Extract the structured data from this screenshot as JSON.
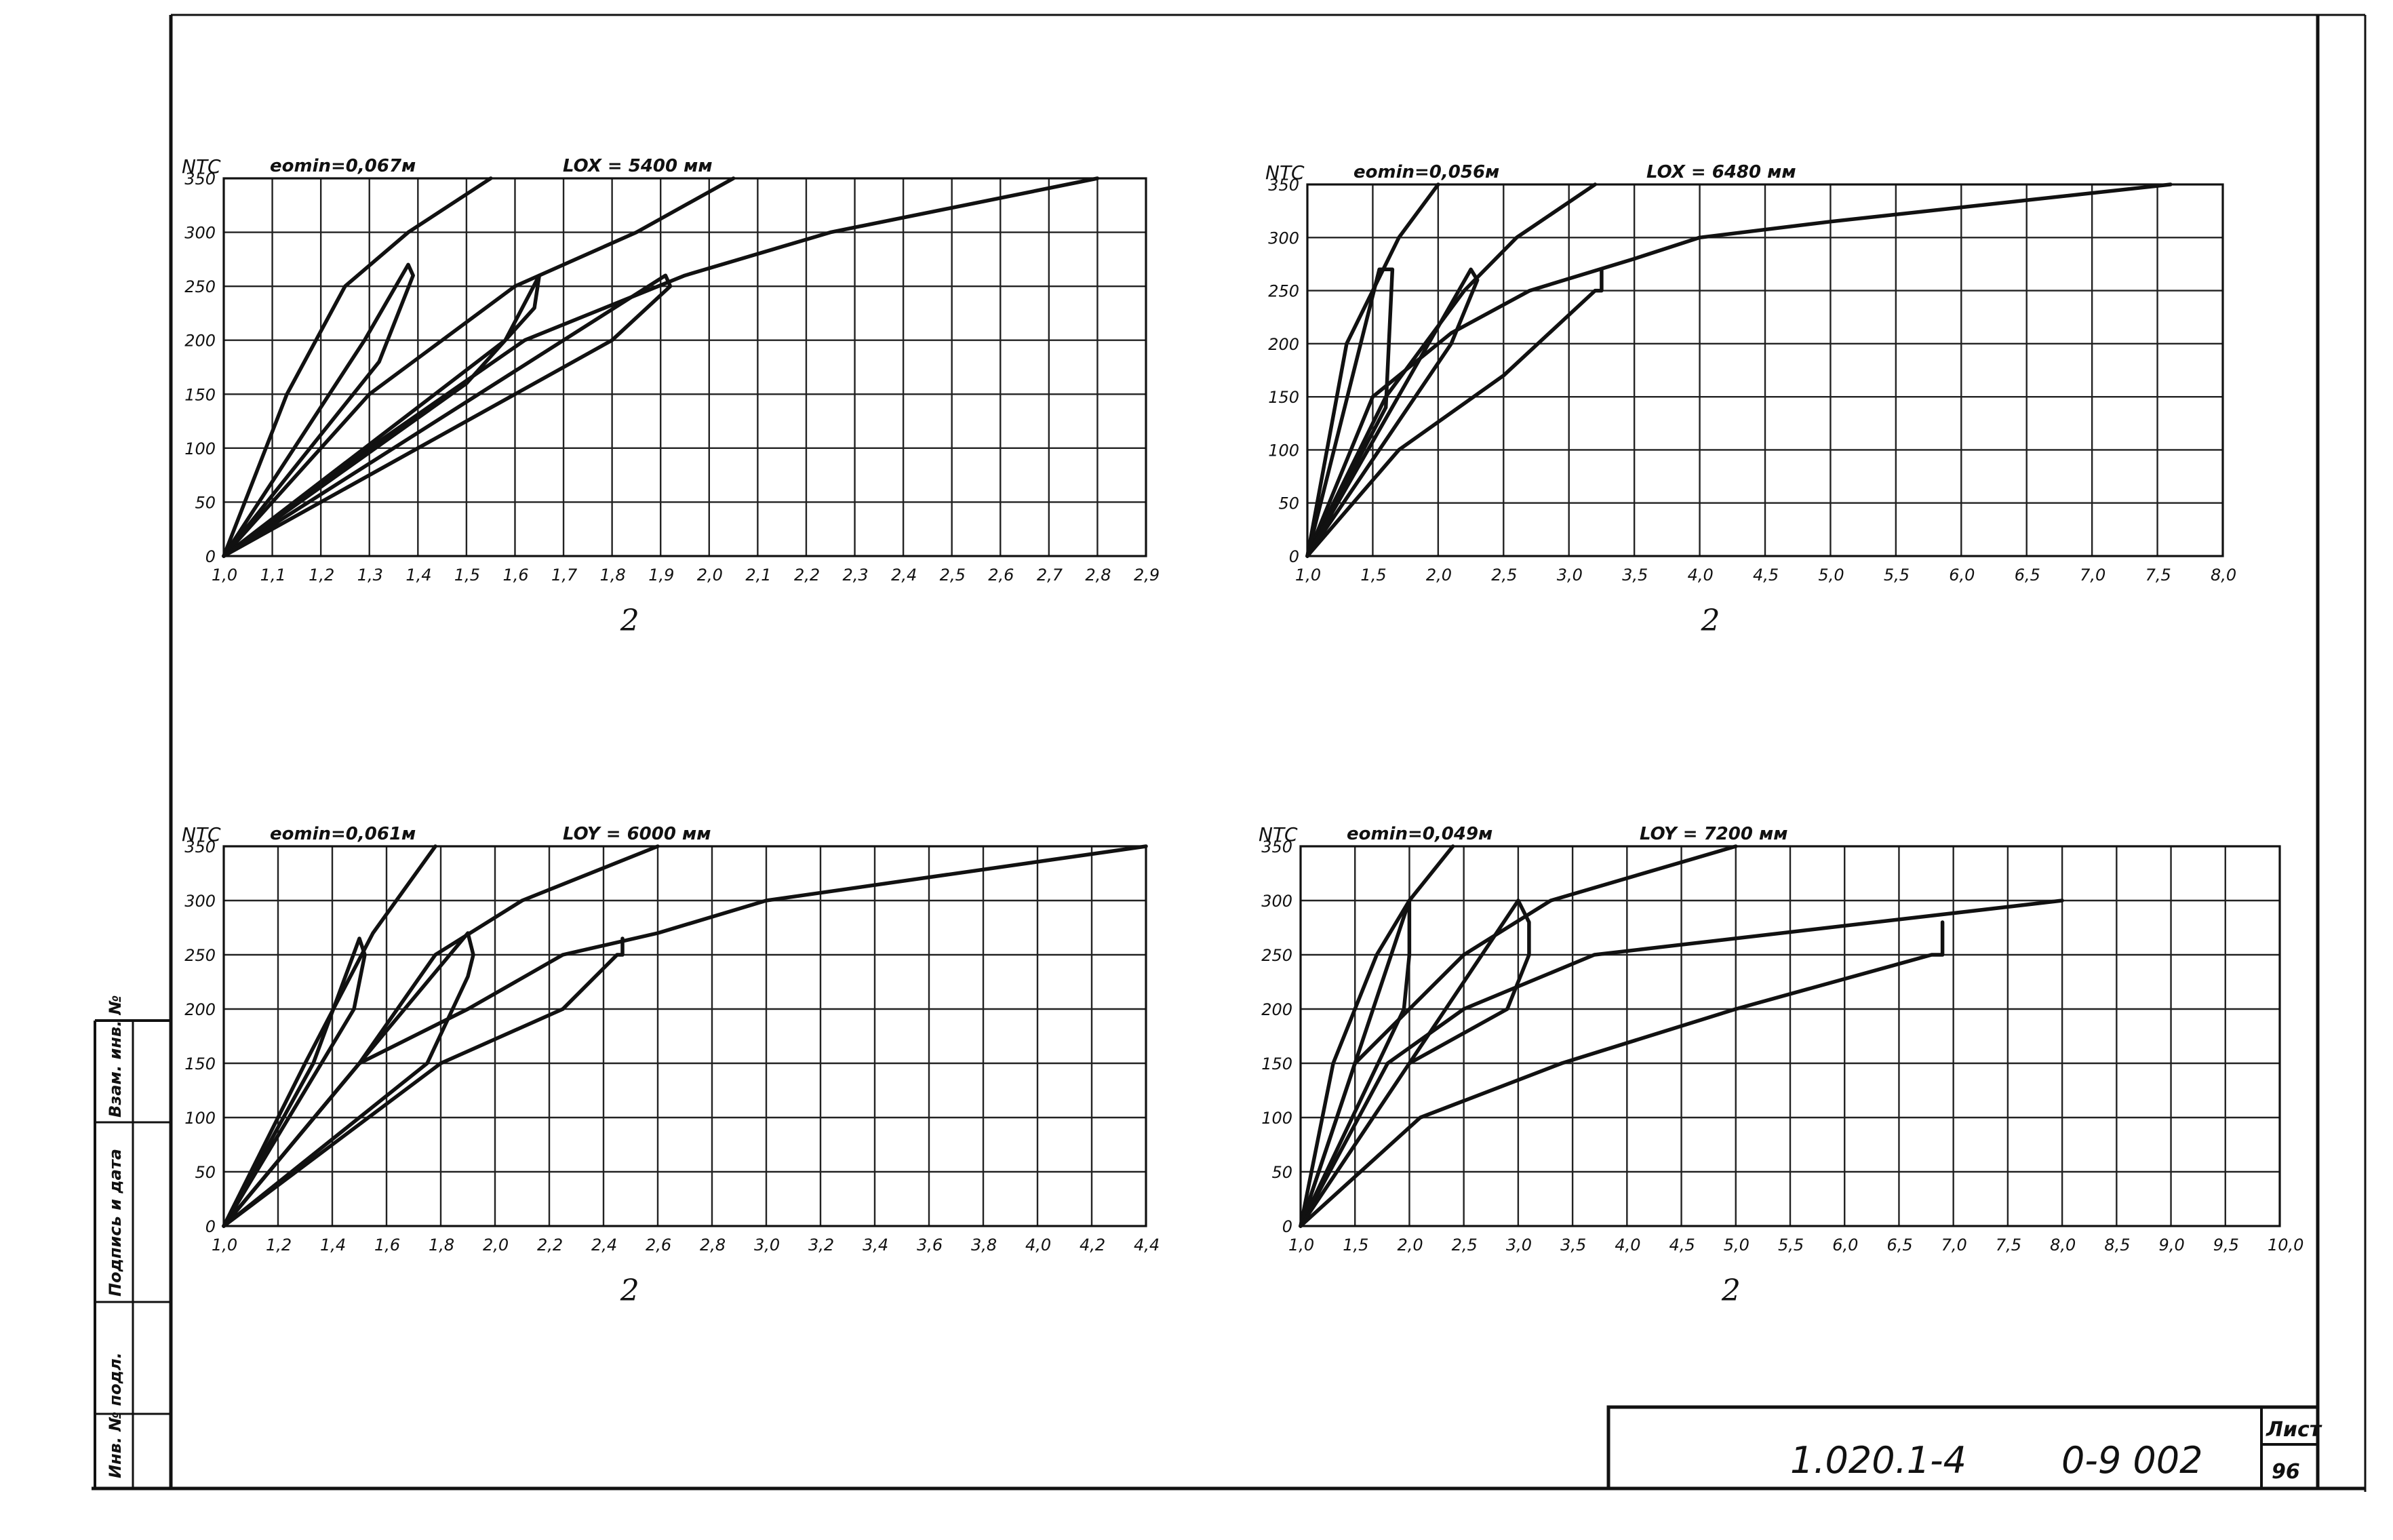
{
  "stamp": {
    "doc_code": "1.020.1-4",
    "series": "0-9 002",
    "sheet_label": "Лист",
    "sheet_number": "96"
  },
  "side_strip": {
    "labels": [
      "Инв. № подл.",
      "Подпись и дата",
      "Взам. инв. №"
    ]
  },
  "chart_data": [
    {
      "type": "line",
      "ylabel": "NTC",
      "xlabel": "2",
      "emin_label": "eomin=0,067м",
      "l_label": "LOX = 5400 мм",
      "xlim": [
        1.0,
        2.9
      ],
      "ylim": [
        0,
        350
      ],
      "grid": true,
      "xticks": [
        1.0,
        1.1,
        1.2,
        1.3,
        1.4,
        1.5,
        1.6,
        1.7,
        1.8,
        1.9,
        2.0,
        2.1,
        2.2,
        2.3,
        2.4,
        2.5,
        2.6,
        2.7,
        2.8,
        2.9
      ],
      "xtick_labels": [
        "1,0",
        "1,1",
        "1,2",
        "1,3",
        "1,4",
        "1,5",
        "1,6",
        "1,7",
        "1,8",
        "1,9",
        "2,0",
        "2,1",
        "2,2",
        "2,3",
        "2,4",
        "2,5",
        "2,6",
        "2,7",
        "2,8",
        "2,9"
      ],
      "yticks": [
        0,
        50,
        100,
        150,
        200,
        250,
        300,
        350
      ],
      "series": [
        {
          "x": [
            1.0,
            1.13,
            1.25,
            1.38,
            1.55
          ],
          "y": [
            0,
            150,
            250,
            300,
            350
          ]
        },
        {
          "x": [
            1.0,
            1.3,
            1.6,
            1.85,
            2.05
          ],
          "y": [
            0,
            150,
            250,
            300,
            350
          ]
        },
        {
          "x": [
            1.0,
            1.3,
            1.62,
            1.95,
            2.25,
            2.8
          ],
          "y": [
            0,
            100,
            200,
            260,
            300,
            350
          ]
        },
        {
          "x": [
            1.0,
            1.32,
            1.39,
            1.38,
            1.29,
            1.0
          ],
          "y": [
            0,
            180,
            260,
            270,
            200,
            0
          ]
        },
        {
          "x": [
            1.0,
            1.5,
            1.64,
            1.65,
            1.58,
            1.0
          ],
          "y": [
            0,
            160,
            230,
            260,
            200,
            0
          ]
        },
        {
          "x": [
            1.0,
            1.6,
            1.8,
            1.92,
            1.91,
            1.0
          ],
          "y": [
            0,
            150,
            200,
            250,
            260,
            0
          ]
        }
      ]
    },
    {
      "type": "line",
      "ylabel": "NTC",
      "xlabel": "2",
      "emin_label": "eomin=0,056м",
      "l_label": "LOX = 6480 мм",
      "xlim": [
        1.0,
        8.0
      ],
      "ylim": [
        0,
        350
      ],
      "grid": true,
      "xticks": [
        1.0,
        1.5,
        2.0,
        2.5,
        3.0,
        3.5,
        4.0,
        4.5,
        5.0,
        5.5,
        6.0,
        6.5,
        7.0,
        7.5,
        8.0
      ],
      "xtick_labels": [
        "1,0",
        "1,5",
        "2,0",
        "2,5",
        "3,0",
        "3,5",
        "4,0",
        "4,5",
        "5,0",
        "5,5",
        "6,0",
        "6,5",
        "7,0",
        "7,5",
        "8,0"
      ],
      "yticks": [
        0,
        50,
        100,
        150,
        200,
        250,
        300,
        350
      ],
      "series": [
        {
          "x": [
            1.0,
            1.3,
            1.7,
            2.0
          ],
          "y": [
            0,
            200,
            300,
            350
          ]
        },
        {
          "x": [
            1.0,
            1.6,
            2.2,
            2.6,
            3.2
          ],
          "y": [
            0,
            150,
            250,
            300,
            350
          ]
        },
        {
          "x": [
            1.0,
            1.5,
            2.1,
            2.7,
            3.5,
            4.0,
            5.0,
            7.6
          ],
          "y": [
            0,
            150,
            210,
            250,
            280,
            300,
            315,
            350
          ]
        },
        {
          "x": [
            1.0,
            1.6,
            1.65,
            1.55,
            1.0
          ],
          "y": [
            0,
            140,
            270,
            270,
            0
          ]
        },
        {
          "x": [
            1.0,
            2.1,
            2.3,
            2.25,
            1.0
          ],
          "y": [
            0,
            200,
            260,
            270,
            0
          ]
        },
        {
          "x": [
            1.0,
            1.7,
            2.5,
            3.2,
            3.25,
            3.25
          ],
          "y": [
            0,
            100,
            170,
            250,
            250,
            270
          ]
        }
      ]
    },
    {
      "type": "line",
      "ylabel": "NTC",
      "xlabel": "2",
      "emin_label": "eomin=0,061м",
      "l_label": "LOY = 6000 мм",
      "xlim": [
        1.0,
        4.4
      ],
      "ylim": [
        0,
        350
      ],
      "grid": true,
      "xticks": [
        1.0,
        1.2,
        1.4,
        1.6,
        1.8,
        2.0,
        2.2,
        2.4,
        2.6,
        2.8,
        3.0,
        3.2,
        3.4,
        3.6,
        3.8,
        4.0,
        4.2,
        4.4
      ],
      "xtick_labels": [
        "1,0",
        "1,2",
        "1,4",
        "1,6",
        "1,8",
        "2,0",
        "2,2",
        "2,4",
        "2,6",
        "2,8",
        "3,0",
        "3,2",
        "3,4",
        "3,6",
        "3,8",
        "4,0",
        "4,2",
        "4,4"
      ],
      "yticks": [
        0,
        50,
        100,
        150,
        200,
        250,
        300,
        350
      ],
      "series": [
        {
          "x": [
            1.0,
            1.3,
            1.55,
            1.78
          ],
          "y": [
            0,
            150,
            270,
            350
          ]
        },
        {
          "x": [
            1.0,
            1.5,
            1.78,
            2.1,
            2.6
          ],
          "y": [
            0,
            150,
            250,
            300,
            350
          ]
        },
        {
          "x": [
            1.0,
            1.5,
            1.9,
            2.25,
            2.6,
            3.0,
            4.4
          ],
          "y": [
            0,
            150,
            200,
            250,
            270,
            300,
            350
          ]
        },
        {
          "x": [
            1.0,
            1.48,
            1.52,
            1.5,
            1.33,
            1.0
          ],
          "y": [
            0,
            200,
            250,
            265,
            150,
            0
          ]
        },
        {
          "x": [
            1.0,
            1.75,
            1.9,
            1.92,
            1.9,
            1.0
          ],
          "y": [
            0,
            150,
            230,
            250,
            270,
            0
          ]
        },
        {
          "x": [
            1.0,
            1.8,
            2.25,
            2.45,
            2.47,
            2.47
          ],
          "y": [
            0,
            150,
            200,
            250,
            250,
            265
          ]
        }
      ]
    },
    {
      "type": "line",
      "ylabel": "NTC",
      "xlabel": "2",
      "emin_label": "eomin=0,049м",
      "l_label": "LOY = 7200 мм",
      "xlim": [
        1.0,
        10.0
      ],
      "ylim": [
        0,
        350
      ],
      "grid": true,
      "xticks": [
        1.0,
        1.5,
        2.0,
        2.5,
        3.0,
        3.5,
        4.0,
        4.5,
        5.0,
        5.5,
        6.0,
        6.5,
        7.0,
        7.5,
        8.0,
        8.5,
        9.0,
        9.5,
        10.0
      ],
      "xtick_labels": [
        "1,0",
        "1,5",
        "2,0",
        "2,5",
        "3,0",
        "3,5",
        "4,0",
        "4,5",
        "5,0",
        "5,5",
        "6,0",
        "6,5",
        "7,0",
        "7,5",
        "8,0",
        "8,5",
        "9,0",
        "9,5",
        "10,0"
      ],
      "yticks": [
        0,
        50,
        100,
        150,
        200,
        250,
        300,
        350
      ],
      "series": [
        {
          "x": [
            1.0,
            1.3,
            1.7,
            2.0,
            2.4
          ],
          "y": [
            0,
            150,
            250,
            300,
            350
          ]
        },
        {
          "x": [
            1.0,
            1.5,
            2.5,
            3.3,
            5.0
          ],
          "y": [
            0,
            150,
            250,
            300,
            350
          ]
        },
        {
          "x": [
            1.0,
            1.8,
            2.5,
            3.7,
            8.0
          ],
          "y": [
            0,
            150,
            200,
            250,
            300
          ]
        },
        {
          "x": [
            1.0,
            1.95,
            2.0,
            2.0,
            1.0
          ],
          "y": [
            0,
            200,
            250,
            300,
            0
          ]
        },
        {
          "x": [
            1.0,
            2.0,
            2.9,
            3.1,
            3.1,
            3.0,
            1.0
          ],
          "y": [
            0,
            150,
            200,
            250,
            280,
            300,
            0
          ]
        },
        {
          "x": [
            1.0,
            2.1,
            3.4,
            5.0,
            6.8,
            6.9,
            6.9
          ],
          "y": [
            0,
            100,
            150,
            200,
            250,
            250,
            280
          ]
        }
      ]
    }
  ]
}
